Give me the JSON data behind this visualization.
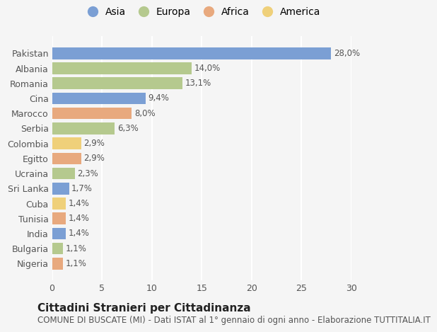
{
  "countries": [
    "Pakistan",
    "Albania",
    "Romania",
    "Cina",
    "Marocco",
    "Serbia",
    "Colombia",
    "Egitto",
    "Ucraina",
    "Sri Lanka",
    "Cuba",
    "Tunisia",
    "India",
    "Bulgaria",
    "Nigeria"
  ],
  "values": [
    28.0,
    14.0,
    13.1,
    9.4,
    8.0,
    6.3,
    2.9,
    2.9,
    2.3,
    1.7,
    1.4,
    1.4,
    1.4,
    1.1,
    1.1
  ],
  "labels": [
    "28,0%",
    "14,0%",
    "13,1%",
    "9,4%",
    "8,0%",
    "6,3%",
    "2,9%",
    "2,9%",
    "2,3%",
    "1,7%",
    "1,4%",
    "1,4%",
    "1,4%",
    "1,1%",
    "1,1%"
  ],
  "continents": [
    "Asia",
    "Europa",
    "Europa",
    "Asia",
    "Africa",
    "Europa",
    "America",
    "Africa",
    "Europa",
    "Asia",
    "America",
    "Africa",
    "Asia",
    "Europa",
    "Africa"
  ],
  "colors": {
    "Asia": "#7b9fd4",
    "Europa": "#b5c98e",
    "Africa": "#e8a97e",
    "America": "#efd07a"
  },
  "legend_order": [
    "Asia",
    "Europa",
    "Africa",
    "America"
  ],
  "title": "Cittadini Stranieri per Cittadinanza",
  "subtitle": "COMUNE DI BUSCATE (MI) - Dati ISTAT al 1° gennaio di ogni anno - Elaborazione TUTTITALIA.IT",
  "xlim": [
    0,
    30
  ],
  "xticks": [
    0,
    5,
    10,
    15,
    20,
    25,
    30
  ],
  "background_color": "#f5f5f5",
  "grid_color": "#ffffff",
  "title_fontsize": 11,
  "subtitle_fontsize": 8.5,
  "label_fontsize": 8.5,
  "tick_fontsize": 9,
  "legend_fontsize": 10
}
